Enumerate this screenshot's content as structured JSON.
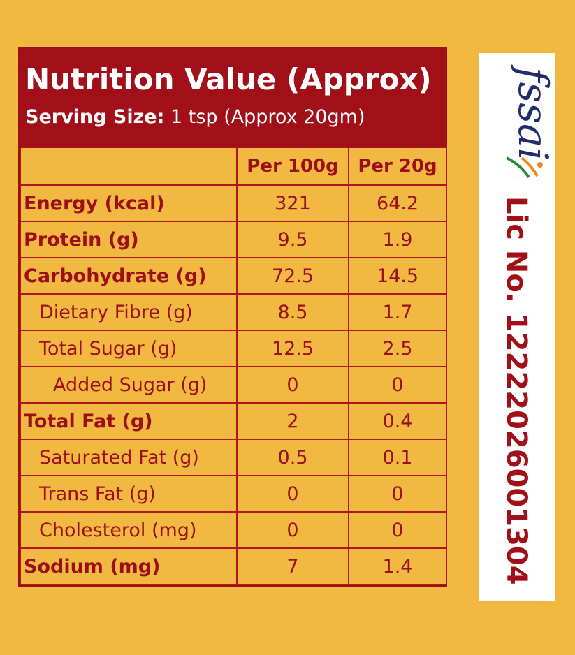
{
  "header": {
    "title": "Nutrition Value (Approx)",
    "serving_label": "Serving Size:",
    "serving_value": " 1 tsp (Approx 20gm)"
  },
  "table": {
    "col_per100": "Per 100g",
    "col_per20": "Per 20g",
    "rows": [
      {
        "label": "Energy (kcal)",
        "per100": "321",
        "per20": "64.2"
      },
      {
        "label": "Protein (g)",
        "per100": "9.5",
        "per20": "1.9"
      },
      {
        "label": "Carbohydrate (g)",
        "per100": "72.5",
        "per20": "14.5"
      },
      {
        "label": "Dietary Fibre (g)",
        "per100": "8.5",
        "per20": "1.7"
      },
      {
        "label": "Total Sugar (g)",
        "per100": "12.5",
        "per20": "2.5"
      },
      {
        "label": "Added Sugar (g)",
        "per100": "0",
        "per20": "0"
      },
      {
        "label": "Total Fat (g)",
        "per100": "2",
        "per20": "0.4"
      },
      {
        "label": "Saturated Fat (g)",
        "per100": "0.5",
        "per20": "0.1"
      },
      {
        "label": "Trans Fat (g)",
        "per100": "0",
        "per20": "0"
      },
      {
        "label": "Cholesterol (mg)",
        "per100": "0",
        "per20": "0"
      },
      {
        "label": "Sodium (mg)",
        "per100": "7",
        "per20": "1.4"
      }
    ]
  },
  "certification": {
    "logo_text": "fssai",
    "license": "Lic No. 12222026001304"
  },
  "colors": {
    "background": "#f2b942",
    "header": "#a10f18",
    "text": "#9c0f17",
    "logo_blue": "#1f2d6b",
    "logo_green": "#2a8a3a",
    "logo_orange": "#f08a1c"
  }
}
